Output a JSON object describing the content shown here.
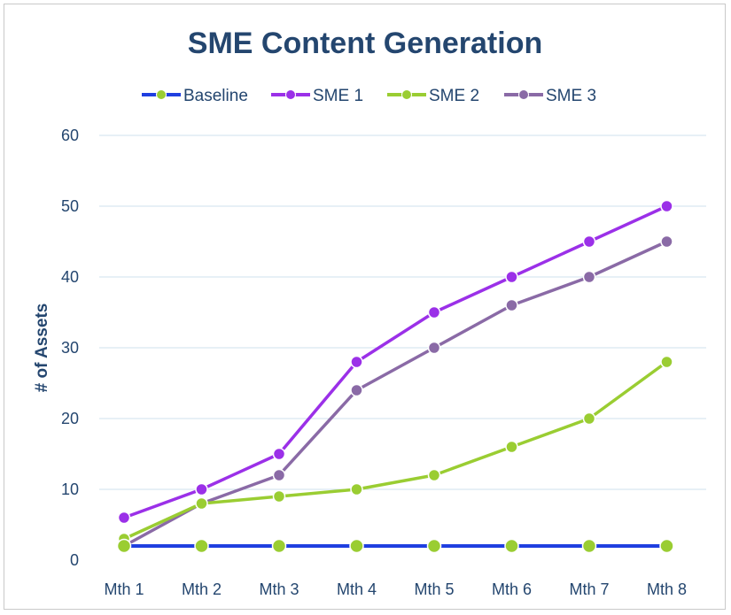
{
  "chart_data": {
    "type": "line",
    "title": "SME Content Generation",
    "xlabel": "",
    "ylabel": "# of Assets",
    "categories": [
      "Mth 1",
      "Mth 2",
      "Mth 3",
      "Mth 4",
      "Mth 5",
      "Mth 6",
      "Mth 7",
      "Mth 8"
    ],
    "ylim": [
      0,
      60
    ],
    "yticks": [
      0,
      10,
      20,
      30,
      40,
      50,
      60
    ],
    "grid": true,
    "legend_position": "top",
    "series": [
      {
        "name": "Baseline",
        "values": [
          2,
          2,
          2,
          2,
          2,
          2,
          2,
          2
        ],
        "line_color": "#1f3fe0",
        "marker_color": "#9acd32"
      },
      {
        "name": "SME 1",
        "values": [
          6,
          10,
          15,
          28,
          35,
          40,
          45,
          50
        ],
        "line_color": "#9b30e8",
        "marker_color": "#9b30e8"
      },
      {
        "name": "SME 2",
        "values": [
          3,
          8,
          9,
          10,
          12,
          16,
          20,
          28
        ],
        "line_color": "#9acd32",
        "marker_color": "#9acd32"
      },
      {
        "name": "SME 3",
        "values": [
          2,
          8,
          12,
          24,
          30,
          36,
          40,
          45
        ],
        "line_color": "#8a6aa6",
        "marker_color": "#8a6aa6"
      }
    ]
  }
}
